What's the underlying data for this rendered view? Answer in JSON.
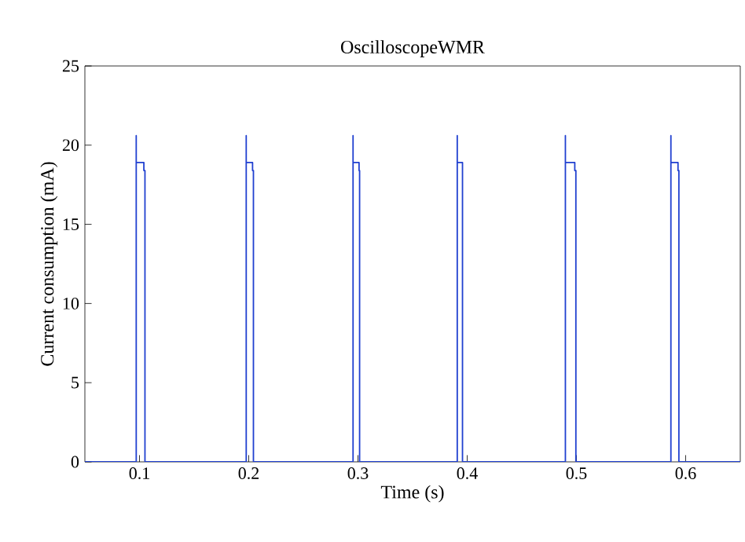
{
  "chart_data": {
    "type": "line",
    "title": "OscilloscopeWMR",
    "xlabel": "Time (s)",
    "ylabel": "Current consumption (mA)",
    "xlim": [
      0.05,
      0.65
    ],
    "ylim": [
      0,
      25
    ],
    "xticks": [
      0.1,
      0.2,
      0.3,
      0.4,
      0.5,
      0.6
    ],
    "yticks": [
      0,
      5,
      10,
      15,
      20,
      25
    ],
    "grid": false,
    "marker": "none",
    "line_style": "solid",
    "series": [
      {
        "color": "#2040d0",
        "x": [
          0.05,
          0.097,
          0.097,
          0.097,
          0.104,
          0.104,
          0.105,
          0.105,
          0.1977,
          0.1977,
          0.1977,
          0.2035,
          0.2035,
          0.2043,
          0.2043,
          0.2955,
          0.2955,
          0.2955,
          0.301,
          0.301,
          0.3015,
          0.3015,
          0.3909,
          0.3909,
          0.3909,
          0.3957,
          0.3957,
          0.4899,
          0.4899,
          0.4899,
          0.4985,
          0.4985,
          0.4995,
          0.4995,
          0.5865,
          0.5865,
          0.5865,
          0.593,
          0.593,
          0.5938,
          0.5938,
          0.65
        ],
        "values": [
          0,
          0,
          20.6,
          18.9,
          18.9,
          18.4,
          18.4,
          0,
          0,
          20.6,
          18.9,
          18.9,
          18.4,
          18.4,
          0,
          0,
          20.6,
          18.9,
          18.9,
          18.4,
          18.4,
          0,
          0,
          20.6,
          18.9,
          18.9,
          0,
          0,
          20.6,
          18.9,
          18.9,
          18.4,
          18.4,
          0,
          0,
          20.6,
          18.9,
          18.9,
          18.4,
          18.4,
          0,
          0
        ]
      }
    ]
  }
}
